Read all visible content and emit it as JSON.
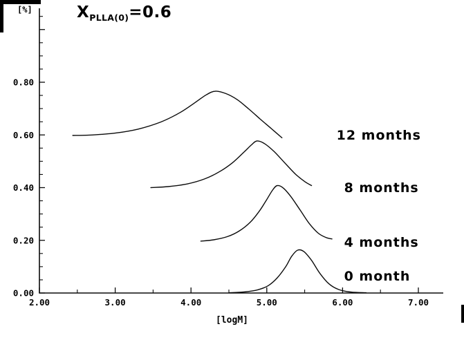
{
  "figure": {
    "background": "#ffffff",
    "line_color": "#0a0a0a"
  },
  "chart_data": {
    "type": "line",
    "title": "X_PLLA(0)=0.6",
    "title_parts": {
      "base": "X",
      "subscript": "PLLA(0)",
      "value": "=0.6"
    },
    "xlabel": "[logM]",
    "ylabel": "[%]",
    "xlim": [
      2.0,
      7.0
    ],
    "ylim": [
      0.0,
      0.8
    ],
    "grid": false,
    "legend_position": "right-inline",
    "x_ticks": [
      {
        "value": 2.0,
        "label": "2.00"
      },
      {
        "value": 3.0,
        "label": "3.00"
      },
      {
        "value": 4.0,
        "label": "4.00"
      },
      {
        "value": 5.0,
        "label": "5.00"
      },
      {
        "value": 6.0,
        "label": "6.00"
      },
      {
        "value": 7.0,
        "label": "7.00"
      }
    ],
    "y_ticks": [
      {
        "value": 0.0,
        "label": "0.00"
      },
      {
        "value": 0.2,
        "label": "0.20"
      },
      {
        "value": 0.4,
        "label": "0.40"
      },
      {
        "value": 0.6,
        "label": "0.60"
      },
      {
        "value": 0.8,
        "label": "0.80"
      }
    ],
    "x_minor_step": 0.5,
    "y_minor_step": 0.05,
    "series": [
      {
        "name": "0 month",
        "baseline_offset": 0.0,
        "label_pos": {
          "x": 6.02,
          "y": 0.062
        },
        "points": [
          [
            4.5,
            0.001
          ],
          [
            4.7,
            0.004
          ],
          [
            4.88,
            0.012
          ],
          [
            5.02,
            0.028
          ],
          [
            5.14,
            0.058
          ],
          [
            5.25,
            0.1
          ],
          [
            5.33,
            0.14
          ],
          [
            5.41,
            0.163
          ],
          [
            5.49,
            0.157
          ],
          [
            5.59,
            0.124
          ],
          [
            5.7,
            0.075
          ],
          [
            5.82,
            0.035
          ],
          [
            5.95,
            0.013
          ],
          [
            6.1,
            0.004
          ],
          [
            6.31,
            0.001
          ]
        ]
      },
      {
        "name": "4 months",
        "baseline_offset": 0.2,
        "label_pos": {
          "x": 6.02,
          "y": 0.192
        },
        "points": [
          [
            4.13,
            0.197
          ],
          [
            4.3,
            0.202
          ],
          [
            4.48,
            0.214
          ],
          [
            4.64,
            0.236
          ],
          [
            4.78,
            0.268
          ],
          [
            4.9,
            0.31
          ],
          [
            5.0,
            0.355
          ],
          [
            5.08,
            0.392
          ],
          [
            5.14,
            0.408
          ],
          [
            5.22,
            0.398
          ],
          [
            5.32,
            0.365
          ],
          [
            5.44,
            0.315
          ],
          [
            5.56,
            0.264
          ],
          [
            5.68,
            0.227
          ],
          [
            5.78,
            0.211
          ],
          [
            5.86,
            0.205
          ]
        ]
      },
      {
        "name": "8 months",
        "baseline_offset": 0.4,
        "label_pos": {
          "x": 6.02,
          "y": 0.399
        },
        "points": [
          [
            3.47,
            0.4
          ],
          [
            3.7,
            0.404
          ],
          [
            3.95,
            0.414
          ],
          [
            4.18,
            0.433
          ],
          [
            4.38,
            0.461
          ],
          [
            4.55,
            0.495
          ],
          [
            4.7,
            0.535
          ],
          [
            4.8,
            0.563
          ],
          [
            4.87,
            0.577
          ],
          [
            4.97,
            0.567
          ],
          [
            5.1,
            0.536
          ],
          [
            5.24,
            0.493
          ],
          [
            5.38,
            0.451
          ],
          [
            5.5,
            0.423
          ],
          [
            5.59,
            0.408
          ]
        ]
      },
      {
        "name": "12 months",
        "baseline_offset": 0.6,
        "label_pos": {
          "x": 5.92,
          "y": 0.598
        },
        "points": [
          [
            2.44,
            0.598
          ],
          [
            2.7,
            0.6
          ],
          [
            3.0,
            0.607
          ],
          [
            3.3,
            0.622
          ],
          [
            3.6,
            0.649
          ],
          [
            3.85,
            0.684
          ],
          [
            4.05,
            0.722
          ],
          [
            4.2,
            0.752
          ],
          [
            4.32,
            0.766
          ],
          [
            4.46,
            0.757
          ],
          [
            4.61,
            0.734
          ],
          [
            4.76,
            0.699
          ],
          [
            4.91,
            0.661
          ],
          [
            5.06,
            0.624
          ],
          [
            5.2,
            0.589
          ]
        ]
      }
    ]
  }
}
